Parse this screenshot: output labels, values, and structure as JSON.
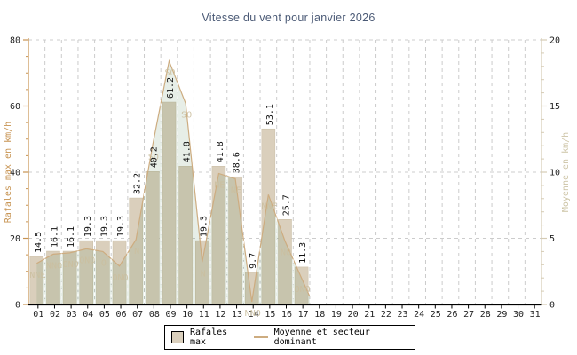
{
  "title": "Vitesse du vent pour janvier 2026",
  "colors": {
    "title_text": "#4b5a76",
    "left_axis": "#c79351",
    "right_axis": "#d5cbb4",
    "right_axis_text": "#cdc4a6",
    "grid": "#cccccc",
    "white_grid": "#ffffff",
    "bar_fill": "#dacfbc",
    "bar_edge": "#c8bca2",
    "area_fill_rgb": "88,134,88",
    "area_fill_opacity": 0.14,
    "avg_line": "#cdac80",
    "dir_label": "#cbbf9f",
    "tick_text": "#222222",
    "value_label": "#111111",
    "axis_bottom": "#000000"
  },
  "chart_data": {
    "type": "bar",
    "title": "Vitesse du vent pour janvier 2026",
    "categories": [
      "01",
      "02",
      "03",
      "04",
      "05",
      "06",
      "07",
      "08",
      "09",
      "10",
      "11",
      "12",
      "13",
      "14",
      "15",
      "16",
      "17",
      "18",
      "19",
      "20",
      "21",
      "22",
      "23",
      "24",
      "25",
      "26",
      "27",
      "28",
      "29",
      "30",
      "31"
    ],
    "series": [
      {
        "name": "Rafales max",
        "type": "bar",
        "axis": "left",
        "unit": "km/h",
        "values": [
          14.5,
          16.1,
          16.1,
          19.3,
          19.3,
          19.3,
          32.2,
          40.2,
          61.2,
          41.8,
          19.3,
          41.8,
          38.6,
          9.7,
          53.1,
          25.7,
          11.3,
          null,
          null,
          null,
          null,
          null,
          null,
          null,
          null,
          null,
          null,
          null,
          null,
          null,
          null
        ]
      },
      {
        "name": "Moyenne",
        "type": "area-line",
        "axis": "right",
        "unit": "km/h",
        "values": [
          3.1,
          3.8,
          3.9,
          4.2,
          4.0,
          2.9,
          4.9,
          12.0,
          18.4,
          15.2,
          3.2,
          9.9,
          9.5,
          0.2,
          8.3,
          4.8,
          2.0,
          null,
          null,
          null,
          null,
          null,
          null,
          null,
          null,
          null,
          null,
          null,
          null,
          null,
          null
        ]
      },
      {
        "name": "Secteur dominant",
        "type": "point-labels",
        "values": [
          "NNE",
          "NNO",
          "ONO",
          "ONO",
          "O",
          "ONO",
          "N",
          "SO",
          "SO",
          "SO",
          "N",
          "NE",
          "NE",
          "NNO",
          "NNE",
          "NO",
          "ONO",
          null,
          null,
          null,
          null,
          null,
          null,
          null,
          null,
          null,
          null,
          null,
          null,
          null,
          null
        ]
      }
    ],
    "left_axis": {
      "label": "Rafales max en km/h",
      "min": 0,
      "max": 80,
      "major_ticks": [
        0,
        20,
        40,
        60,
        80
      ],
      "minor_step": 5
    },
    "right_axis": {
      "label": "Moyenne en km/h",
      "min": 0,
      "max": 20,
      "major_ticks": [
        0,
        5,
        10,
        15,
        20
      ],
      "minor_step": 1
    },
    "legend": {
      "position": "bottom",
      "items": [
        {
          "label": "Rafales max",
          "swatch": "bar"
        },
        {
          "label": "Moyenne et secteur dominant",
          "swatch": "line"
        }
      ]
    },
    "grid": "dashed"
  }
}
